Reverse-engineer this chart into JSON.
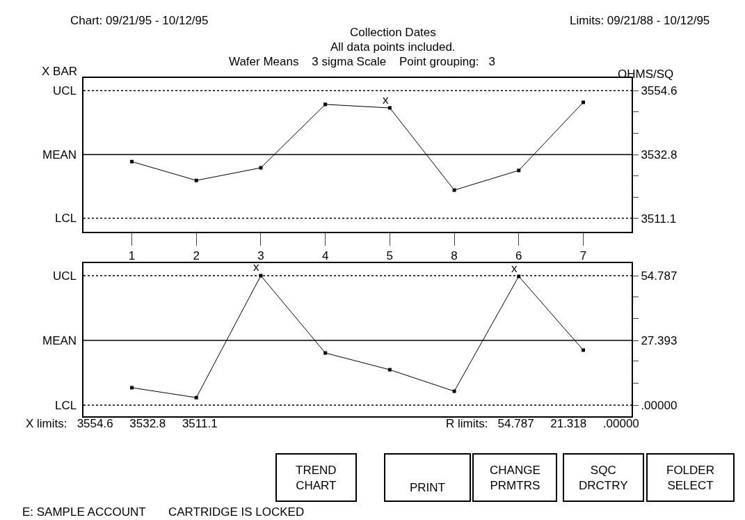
{
  "chart_data": [
    {
      "type": "line",
      "title": "Collection Dates",
      "ylabel": "OHMS/SQ",
      "categories": [
        "1",
        "2",
        "3",
        "4",
        "5",
        "8",
        "6",
        "7"
      ],
      "series": [
        {
          "color": "#000000",
          "values": [
            3530.4,
            3524.0,
            3528.3,
            3549.9,
            3548.7,
            3520.7,
            3527.4,
            3550.6
          ]
        }
      ],
      "marker": "square",
      "line_style": "solid",
      "ylim": [
        3506.5,
        3558.9
      ],
      "yticks": [
        3554.6,
        {
          "value": 3547.3,
          "label": null
        },
        {
          "value": 3540.0,
          "label": null
        },
        3532.8,
        {
          "value": 3525.6,
          "label": null
        },
        {
          "value": 3518.3,
          "label": null
        },
        3511.1
      ],
      "ref_lines": [
        {
          "axis": "y",
          "value": 3554.6,
          "label": "UCL",
          "line_style": "dotted"
        },
        {
          "axis": "y",
          "value": 3532.8,
          "label": "MEAN",
          "line_style": "solid"
        },
        {
          "axis": "y",
          "value": 3511.1,
          "label": "LCL",
          "line_style": "dotted"
        }
      ],
      "annotations": [
        "Chart: 09/21/95 - 10/12/95",
        "Limits: 09/21/88 - 10/12/95",
        "All data points included.",
        "Wafer Means    3 sigma Scale    Point grouping:   3",
        "X BAR",
        {
          "text": "x",
          "x": "5",
          "y": 3548.7
        }
      ]
    },
    {
      "type": "line",
      "categories": [
        "1",
        "2",
        "3",
        "4",
        "5",
        "8",
        "6",
        "7"
      ],
      "tick_labels": "y",
      "series": [
        {
          "color": "#000000",
          "values": [
            7.4,
            3.2,
            54.8,
            22.1,
            15.0,
            5.9,
            54.5,
            23.3
          ]
        }
      ],
      "marker": "square",
      "line_style": "solid",
      "ylim": [
        -4.7,
        60.1
      ],
      "yticks": [
        54.787,
        {
          "value": 45.9,
          "label": null
        },
        {
          "value": 36.8,
          "label": null
        },
        27.393,
        {
          "value": 18.6,
          "label": null
        },
        {
          "value": 9.4,
          "label": null
        },
        {
          "value": 0,
          "label": ".00000"
        }
      ],
      "ref_lines": [
        {
          "axis": "y",
          "value": 54.787,
          "label": "UCL",
          "line_style": "dotted"
        },
        {
          "axis": "y",
          "value": 27.393,
          "label": "MEAN",
          "line_style": "solid"
        },
        {
          "axis": "y",
          "value": 0,
          "label": "LCL",
          "line_style": "dotted"
        }
      ],
      "annotations": [
        {
          "text": "x",
          "x": "3",
          "y": 54.8
        },
        {
          "text": "x",
          "x": "6",
          "y": 54.5
        },
        "X limits:   3554.6     3532.8     3511.1",
        "R limits:   54.787     21.318     .00000"
      ]
    },
    {
      "type": "other",
      "annotations": [
        "TREND CHART",
        "PRINT",
        "CHANGE PRMTRS",
        "SQC DRCTRY",
        "FOLDER SELECT",
        "E: SAMPLE ACCOUNT",
        "CARTRIDGE IS LOCKED"
      ]
    }
  ]
}
